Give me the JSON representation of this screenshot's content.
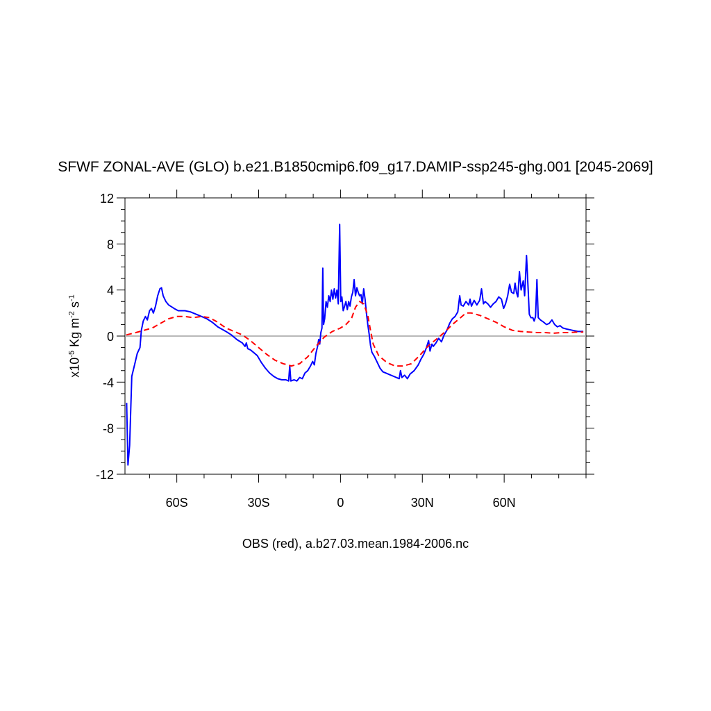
{
  "chart_data": {
    "type": "line",
    "title": "SFWF ZONAL-AVE (GLO) b.e21.B1850cmip6.f09_g17.DAMIP-ssp245-ghg.001 [2045-2069]",
    "subtitle": "OBS (red), a.b27.03.mean.1984-2006.nc",
    "ylabel": {
      "prefix": "x10",
      "exp1": "-5",
      "mid": " Kg m",
      "exp2": "-2",
      "mid2": " s",
      "exp3": "-1"
    },
    "xlim": [
      -79,
      90
    ],
    "ylim": [
      -12,
      12
    ],
    "x_ticks": [
      -60,
      -30,
      0,
      30,
      60
    ],
    "x_tick_labels": [
      "60S",
      "30S",
      "0",
      "30N",
      "60N"
    ],
    "y_ticks": [
      -12,
      -8,
      -4,
      0,
      4,
      8,
      12
    ],
    "y_tick_labels": [
      "-12",
      "-8",
      "-4",
      "0",
      "4",
      "8",
      "12"
    ],
    "zero_line": true,
    "grid": false,
    "series": [
      {
        "color": "#0000ff",
        "style": "solid",
        "points": [
          [
            -78.4,
            -5.8
          ],
          [
            -77.9,
            -11.2
          ],
          [
            -77.3,
            -9.5
          ],
          [
            -76.5,
            -3.5
          ],
          [
            -75.5,
            -2.5
          ],
          [
            -74.5,
            -1.5
          ],
          [
            -73.5,
            -1.0
          ],
          [
            -73.0,
            0.5
          ],
          [
            -72.3,
            1.3
          ],
          [
            -71.5,
            1.7
          ],
          [
            -70.8,
            1.4
          ],
          [
            -70.0,
            2.2
          ],
          [
            -69.3,
            2.4
          ],
          [
            -68.6,
            2.0
          ],
          [
            -67.8,
            2.6
          ],
          [
            -67.0,
            3.5
          ],
          [
            -66.2,
            4.1
          ],
          [
            -65.6,
            4.2
          ],
          [
            -65.0,
            3.5
          ],
          [
            -64.0,
            3.0
          ],
          [
            -63.0,
            2.7
          ],
          [
            -61.0,
            2.4
          ],
          [
            -59.5,
            2.2
          ],
          [
            -57.0,
            2.2
          ],
          [
            -55.0,
            2.1
          ],
          [
            -52.0,
            1.8
          ],
          [
            -49.0,
            1.5
          ],
          [
            -47.0,
            1.2
          ],
          [
            -45.0,
            0.8
          ],
          [
            -42.0,
            0.4
          ],
          [
            -40.0,
            0.1
          ],
          [
            -38.0,
            -0.3
          ],
          [
            -36.0,
            -0.6
          ],
          [
            -35.0,
            -0.9
          ],
          [
            -34.5,
            -0.6
          ],
          [
            -34.0,
            -1.1
          ],
          [
            -33.0,
            -1.2
          ],
          [
            -32.0,
            -1.4
          ],
          [
            -30.5,
            -1.7
          ],
          [
            -29.0,
            -2.3
          ],
          [
            -27.5,
            -2.8
          ],
          [
            -26.0,
            -3.2
          ],
          [
            -24.5,
            -3.5
          ],
          [
            -23.0,
            -3.7
          ],
          [
            -21.5,
            -3.8
          ],
          [
            -20.0,
            -3.8
          ],
          [
            -19.0,
            -3.9
          ],
          [
            -18.6,
            -2.6
          ],
          [
            -18.2,
            -3.9
          ],
          [
            -17.0,
            -3.8
          ],
          [
            -16.0,
            -3.9
          ],
          [
            -15.0,
            -3.6
          ],
          [
            -14.0,
            -3.7
          ],
          [
            -13.0,
            -3.2
          ],
          [
            -12.0,
            -3.0
          ],
          [
            -11.0,
            -2.6
          ],
          [
            -10.2,
            -2.2
          ],
          [
            -9.6,
            -2.5
          ],
          [
            -9.0,
            -1.5
          ],
          [
            -8.4,
            -0.9
          ],
          [
            -8.0,
            -0.3
          ],
          [
            -7.6,
            -0.7
          ],
          [
            -7.2,
            0.3
          ],
          [
            -6.8,
            0.7
          ],
          [
            -6.5,
            5.9
          ],
          [
            -6.2,
            1.0
          ],
          [
            -5.8,
            1.5
          ],
          [
            -5.3,
            3.0
          ],
          [
            -4.8,
            2.5
          ],
          [
            -4.3,
            3.5
          ],
          [
            -3.8,
            3.0
          ],
          [
            -3.3,
            4.0
          ],
          [
            -2.8,
            3.2
          ],
          [
            -2.3,
            4.1
          ],
          [
            -1.8,
            3.3
          ],
          [
            -1.3,
            4.0
          ],
          [
            -0.8,
            2.8
          ],
          [
            -0.3,
            9.7
          ],
          [
            0.1,
            3.0
          ],
          [
            0.5,
            3.4
          ],
          [
            1.0,
            2.2
          ],
          [
            1.5,
            2.6
          ],
          [
            2.0,
            3.0
          ],
          [
            2.5,
            2.3
          ],
          [
            3.0,
            3.0
          ],
          [
            3.5,
            2.6
          ],
          [
            4.0,
            3.4
          ],
          [
            4.5,
            3.8
          ],
          [
            5.0,
            4.9
          ],
          [
            5.5,
            3.5
          ],
          [
            6.0,
            4.2
          ],
          [
            6.5,
            3.8
          ],
          [
            7.0,
            3.5
          ],
          [
            7.5,
            3.6
          ],
          [
            8.0,
            2.8
          ],
          [
            8.5,
            4.1
          ],
          [
            9.0,
            3.2
          ],
          [
            9.5,
            2.0
          ],
          [
            10.0,
            1.0
          ],
          [
            10.5,
            0.2
          ],
          [
            11.0,
            -0.8
          ],
          [
            11.5,
            -1.4
          ],
          [
            12.5,
            -1.8
          ],
          [
            13.5,
            -2.3
          ],
          [
            14.5,
            -2.8
          ],
          [
            15.5,
            -3.1
          ],
          [
            16.5,
            -3.2
          ],
          [
            17.5,
            -3.3
          ],
          [
            18.5,
            -3.4
          ],
          [
            19.5,
            -3.5
          ],
          [
            20.5,
            -3.6
          ],
          [
            21.5,
            -3.7
          ],
          [
            22.0,
            -3.0
          ],
          [
            22.5,
            -3.6
          ],
          [
            23.5,
            -3.4
          ],
          [
            24.5,
            -3.7
          ],
          [
            25.5,
            -3.3
          ],
          [
            27.0,
            -3.0
          ],
          [
            28.5,
            -2.5
          ],
          [
            29.5,
            -2.0
          ],
          [
            30.5,
            -1.6
          ],
          [
            31.5,
            -1.0
          ],
          [
            32.3,
            -0.4
          ],
          [
            32.8,
            -1.3
          ],
          [
            33.5,
            -0.7
          ],
          [
            34.0,
            -0.9
          ],
          [
            35.0,
            -0.6
          ],
          [
            36.0,
            -0.2
          ],
          [
            37.0,
            -0.5
          ],
          [
            38.0,
            0.1
          ],
          [
            39.0,
            0.5
          ],
          [
            40.0,
            1.1
          ],
          [
            41.0,
            1.5
          ],
          [
            42.0,
            1.7
          ],
          [
            43.0,
            2.1
          ],
          [
            43.7,
            3.5
          ],
          [
            44.2,
            2.7
          ],
          [
            45.0,
            2.6
          ],
          [
            46.0,
            3.0
          ],
          [
            47.0,
            2.7
          ],
          [
            47.5,
            3.2
          ],
          [
            48.0,
            2.6
          ],
          [
            49.0,
            3.1
          ],
          [
            50.0,
            2.7
          ],
          [
            50.5,
            2.9
          ],
          [
            51.0,
            3.1
          ],
          [
            51.7,
            4.1
          ],
          [
            52.4,
            2.8
          ],
          [
            53.0,
            3.0
          ],
          [
            54.0,
            2.8
          ],
          [
            55.0,
            2.5
          ],
          [
            56.0,
            2.8
          ],
          [
            57.0,
            3.0
          ],
          [
            58.0,
            3.4
          ],
          [
            59.0,
            3.2
          ],
          [
            59.8,
            2.4
          ],
          [
            60.5,
            2.8
          ],
          [
            61.3,
            3.5
          ],
          [
            62.0,
            4.5
          ],
          [
            62.7,
            3.8
          ],
          [
            63.5,
            3.7
          ],
          [
            64.0,
            4.6
          ],
          [
            64.5,
            3.8
          ],
          [
            65.0,
            3.4
          ],
          [
            65.6,
            5.6
          ],
          [
            66.2,
            4.0
          ],
          [
            67.0,
            4.8
          ],
          [
            67.5,
            3.5
          ],
          [
            68.2,
            7.0
          ],
          [
            68.8,
            4.0
          ],
          [
            69.2,
            1.9
          ],
          [
            69.8,
            1.6
          ],
          [
            70.5,
            1.6
          ],
          [
            71.0,
            1.3
          ],
          [
            71.5,
            1.7
          ],
          [
            72.0,
            4.9
          ],
          [
            72.5,
            1.6
          ],
          [
            73.3,
            1.4
          ],
          [
            74.5,
            1.2
          ],
          [
            75.5,
            1.0
          ],
          [
            76.5,
            1.1
          ],
          [
            77.5,
            1.4
          ],
          [
            78.5,
            1.0
          ],
          [
            79.5,
            0.8
          ],
          [
            80.5,
            0.9
          ],
          [
            81.5,
            0.7
          ],
          [
            83.0,
            0.6
          ],
          [
            85.0,
            0.5
          ],
          [
            87.0,
            0.4
          ],
          [
            89.0,
            0.4
          ]
        ]
      },
      {
        "color": "#ff0000",
        "style": "dashed",
        "points": [
          [
            -78.5,
            0.1
          ],
          [
            -75.0,
            0.3
          ],
          [
            -72.0,
            0.5
          ],
          [
            -69.0,
            0.7
          ],
          [
            -66.0,
            1.1
          ],
          [
            -63.0,
            1.5
          ],
          [
            -60.0,
            1.7
          ],
          [
            -57.0,
            1.7
          ],
          [
            -54.0,
            1.6
          ],
          [
            -51.0,
            1.7
          ],
          [
            -48.0,
            1.6
          ],
          [
            -45.0,
            1.2
          ],
          [
            -42.0,
            0.7
          ],
          [
            -39.0,
            0.4
          ],
          [
            -36.0,
            0.1
          ],
          [
            -33.0,
            -0.4
          ],
          [
            -30.0,
            -1.0
          ],
          [
            -27.0,
            -1.6
          ],
          [
            -24.0,
            -2.1
          ],
          [
            -21.0,
            -2.4
          ],
          [
            -18.0,
            -2.6
          ],
          [
            -15.0,
            -2.4
          ],
          [
            -12.0,
            -1.8
          ],
          [
            -9.0,
            -0.9
          ],
          [
            -6.0,
            -0.1
          ],
          [
            -3.0,
            0.4
          ],
          [
            0.0,
            0.7
          ],
          [
            2.0,
            1.0
          ],
          [
            4.0,
            1.5
          ],
          [
            5.5,
            2.5
          ],
          [
            7.0,
            3.0
          ],
          [
            8.5,
            2.8
          ],
          [
            10.0,
            1.8
          ],
          [
            11.0,
            0.5
          ],
          [
            12.0,
            -0.7
          ],
          [
            14.0,
            -1.7
          ],
          [
            17.0,
            -2.3
          ],
          [
            20.0,
            -2.6
          ],
          [
            23.0,
            -2.6
          ],
          [
            26.0,
            -2.4
          ],
          [
            29.0,
            -1.7
          ],
          [
            32.0,
            -0.9
          ],
          [
            35.0,
            -0.3
          ],
          [
            38.0,
            0.3
          ],
          [
            41.0,
            1.0
          ],
          [
            44.0,
            1.6
          ],
          [
            46.0,
            2.0
          ],
          [
            48.0,
            2.0
          ],
          [
            51.0,
            1.8
          ],
          [
            54.0,
            1.5
          ],
          [
            57.0,
            1.2
          ],
          [
            60.0,
            0.8
          ],
          [
            63.0,
            0.5
          ],
          [
            66.0,
            0.4
          ],
          [
            69.0,
            0.35
          ],
          [
            72.0,
            0.3
          ],
          [
            75.0,
            0.3
          ],
          [
            78.0,
            0.25
          ],
          [
            81.0,
            0.3
          ],
          [
            84.0,
            0.3
          ],
          [
            87.0,
            0.35
          ],
          [
            89.0,
            0.35
          ]
        ]
      }
    ]
  }
}
